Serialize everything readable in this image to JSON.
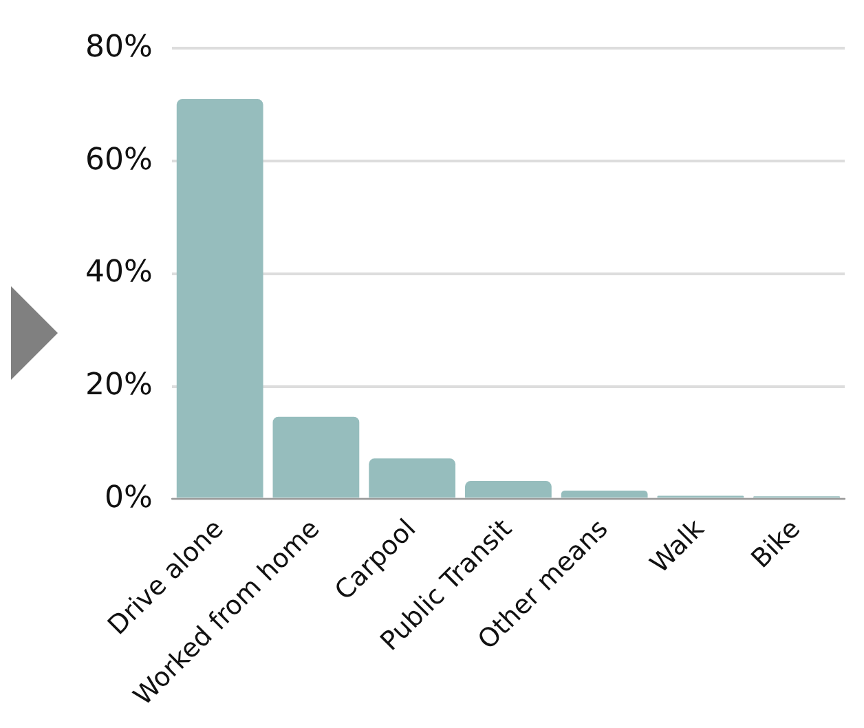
{
  "chart_data": {
    "type": "bar",
    "categories": [
      "Drive alone",
      "Worked from home",
      "Carpool",
      "Public Transit",
      "Other means",
      "Walk",
      "Bike"
    ],
    "values": [
      71,
      14.6,
      7.2,
      3.2,
      1.5,
      0.6,
      0.5
    ],
    "color": "#96bdbd",
    "ylim": [
      0,
      80
    ],
    "yticks": [
      {
        "value": 0,
        "label": "0%"
      },
      {
        "value": 20,
        "label": "20%"
      },
      {
        "value": 40,
        "label": "40%"
      },
      {
        "value": 60,
        "label": "60%"
      },
      {
        "value": 80,
        "label": "80%"
      }
    ],
    "grid": "y",
    "legend": false
  }
}
